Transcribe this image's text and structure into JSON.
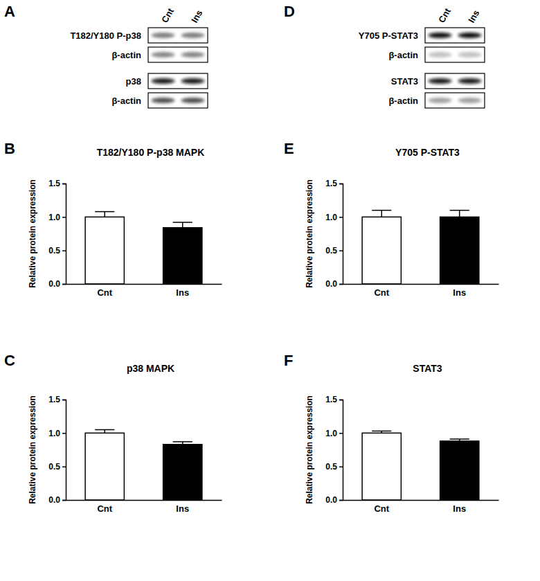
{
  "panel_labels": [
    "A",
    "B",
    "C",
    "D",
    "E",
    "F"
  ],
  "blots": [
    {
      "lanes": [
        "Cnt",
        "Ins"
      ],
      "rows": [
        "T182/Y180 P-p38",
        "β-actin",
        "p38",
        "β-actin"
      ]
    },
    {
      "lanes": [
        "Cnt",
        "Ins"
      ],
      "rows": [
        "Y705 P-STAT3",
        "β-actin",
        "STAT3",
        "β-actin"
      ]
    }
  ],
  "chart_data": [
    {
      "type": "bar",
      "title": "T182/Y180 P-p38 MAPK",
      "y_label": "Relative protein expression",
      "categories": [
        "Cnt",
        "Ins"
      ],
      "values": [
        1.0,
        0.84
      ],
      "errors": [
        0.08,
        0.08
      ],
      "colors": [
        "#ffffff",
        "#000000"
      ],
      "ylim": [
        0,
        1.5
      ],
      "yticks": [
        {
          "value": 0,
          "label": "0.0"
        },
        {
          "value": 0.5,
          "label": "0.5"
        },
        {
          "value": 1,
          "label": "1.0"
        },
        {
          "value": 1.5,
          "label": "1.5"
        }
      ]
    },
    {
      "type": "bar",
      "title": "p38 MAPK",
      "y_label": "Relative protein expression",
      "categories": [
        "Cnt",
        "Ins"
      ],
      "values": [
        1.0,
        0.83
      ],
      "errors": [
        0.05,
        0.04
      ],
      "colors": [
        "#ffffff",
        "#000000"
      ],
      "ylim": [
        0,
        1.5
      ],
      "yticks": [
        {
          "value": 0,
          "label": "0.0"
        },
        {
          "value": 0.5,
          "label": "0.5"
        },
        {
          "value": 1,
          "label": "1.0"
        },
        {
          "value": 1.5,
          "label": "1.5"
        }
      ]
    },
    {
      "type": "bar",
      "title": "Y705 P-STAT3",
      "y_label": "Relative protein expression",
      "categories": [
        "Cnt",
        "Ins"
      ],
      "values": [
        1.0,
        1.0
      ],
      "errors": [
        0.1,
        0.1
      ],
      "colors": [
        "#ffffff",
        "#000000"
      ],
      "ylim": [
        0,
        1.5
      ],
      "yticks": [
        {
          "value": 0,
          "label": "0.0"
        },
        {
          "value": 0.5,
          "label": "0.5"
        },
        {
          "value": 1,
          "label": "1.0"
        },
        {
          "value": 1.5,
          "label": "1.5"
        }
      ]
    },
    {
      "type": "bar",
      "title": "STAT3",
      "y_label": "Relative protein expression",
      "categories": [
        "Cnt",
        "Ins"
      ],
      "values": [
        1.0,
        0.88
      ],
      "errors": [
        0.03,
        0.03
      ],
      "colors": [
        "#ffffff",
        "#000000"
      ],
      "ylim": [
        0,
        1.5
      ],
      "yticks": [
        {
          "value": 0,
          "label": "0.0"
        },
        {
          "value": 0.5,
          "label": "0.5"
        },
        {
          "value": 1,
          "label": "1.0"
        },
        {
          "value": 1.5,
          "label": "1.5"
        }
      ]
    }
  ]
}
